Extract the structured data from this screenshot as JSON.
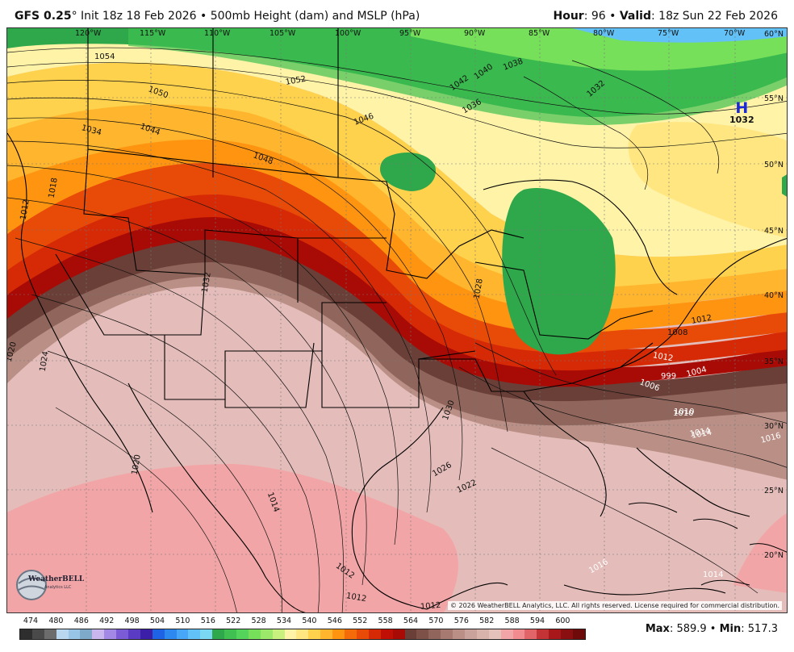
{
  "header": {
    "model": "GFS 0.25",
    "degree": "°",
    "init_text": " Init 18z 18 Feb 2026 • 500mb Height (dam) and MSLP (hPa)",
    "hour_label": "Hour",
    "hour_value": ": 96 • ",
    "valid_label": "Valid",
    "valid_value": ": 18z Sun 22 Feb 2026"
  },
  "map": {
    "longitude_labels": [
      "120°W",
      "115°W",
      "110°W",
      "105°W",
      "100°W",
      "95°W",
      "90°W",
      "85°W",
      "80°W",
      "75°W",
      "70°W"
    ],
    "latitude_labels": [
      "60°N",
      "55°N",
      "50°N",
      "45°N",
      "40°N",
      "35°N",
      "30°N",
      "25°N",
      "20°N"
    ],
    "high_pressure": {
      "symbol": "H",
      "value": "1032",
      "color": "#1a2bd6"
    },
    "isobar_labels": [
      "1054",
      "1050",
      "1052",
      "1034",
      "1044",
      "1048",
      "1046",
      "1042",
      "1040",
      "1038",
      "1036",
      "1032",
      "1018",
      "1012",
      "1010",
      "1014",
      "1032",
      "1020",
      "1024",
      "1028",
      "1030",
      "1026",
      "1022",
      "1020",
      "1014",
      "1012",
      "1012",
      "1012",
      "1008",
      "1012",
      "1006",
      "999",
      "1004",
      "1010",
      "1014",
      "1016",
      "1016",
      "1014",
      "1012"
    ],
    "copyright": "© 2026 WeatherBELL Analytics, LLC. All rights reserved. License required for commercial distribution.",
    "logo_text": "WeatherBELL",
    "logo_subtext": "Analytics LLC"
  },
  "legend": {
    "labels": [
      "474",
      "480",
      "486",
      "492",
      "498",
      "504",
      "510",
      "516",
      "522",
      "528",
      "534",
      "540",
      "546",
      "552",
      "558",
      "564",
      "570",
      "576",
      "582",
      "588",
      "594",
      "600"
    ],
    "colors": [
      "#2e2e2e",
      "#4a4a4a",
      "#6c6c6c",
      "#b9d7ef",
      "#98c4e6",
      "#7ea9c9",
      "#c9b6ef",
      "#a488e6",
      "#7b5cd6",
      "#5a3bc4",
      "#3b1fa8",
      "#1e63e6",
      "#2d88f0",
      "#47a6f5",
      "#62c1f7",
      "#7bd8f2",
      "#2ea84a",
      "#40c050",
      "#55d45c",
      "#76e05a",
      "#9ce86a",
      "#c7f07e",
      "#fff3a8",
      "#ffe680",
      "#ffd24d",
      "#ffb52e",
      "#ff9410",
      "#f56b0a",
      "#e84a08",
      "#d62a06",
      "#c01005",
      "#a80a05",
      "#6a3f37",
      "#7d5148",
      "#90655b",
      "#a67a70",
      "#b98f86",
      "#c9a39b",
      "#d7b3ac",
      "#e4c1bb",
      "#f2a5a6",
      "#f08c8f",
      "#e06468",
      "#c43436",
      "#a8181a",
      "#8a0f10",
      "#6e0a0a"
    ]
  },
  "stats": {
    "max_label": "Max",
    "max_value": ": 589.9 • ",
    "min_label": "Min",
    "min_value": ": 517.3"
  }
}
